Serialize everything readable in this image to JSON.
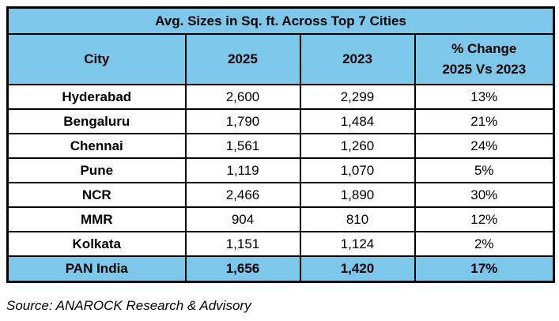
{
  "title": "Avg. Sizes in Sq. ft. Across Top 7 Cities",
  "source": "Source: ANAROCK Research & Advisory",
  "colors": {
    "header_bg": "#7CC7EA",
    "total_row_bg": "#7CC7EA",
    "border": "#000000",
    "text": "#000000",
    "page_bg": "#FFFFFF"
  },
  "table": {
    "header": {
      "city": "City",
      "y2025": "2025",
      "y2023": "2023",
      "change_line1": "% Change",
      "change_line2": "2025 Vs 2023"
    },
    "rows": [
      {
        "city": "Hyderabad",
        "v2025": "2,600",
        "v2023": "2,299",
        "change": "13%"
      },
      {
        "city": "Bengaluru",
        "v2025": "1,790",
        "v2023": "1,484",
        "change": "21%"
      },
      {
        "city": "Chennai",
        "v2025": "1,561",
        "v2023": "1,260",
        "change": "24%"
      },
      {
        "city": "Pune",
        "v2025": "1,119",
        "v2023": "1,070",
        "change": "5%"
      },
      {
        "city": "NCR",
        "v2025": "2,466",
        "v2023": "1,890",
        "change": "30%"
      },
      {
        "city": "MMR",
        "v2025": "904",
        "v2023": "810",
        "change": "12%"
      },
      {
        "city": "Kolkata",
        "v2025": "1,151",
        "v2023": "1,124",
        "change": "2%"
      },
      {
        "city": "PAN India",
        "v2025": "1,656",
        "v2023": "1,420",
        "change": "17%"
      }
    ]
  },
  "chart_data": {
    "type": "table",
    "title": "Avg. Sizes in Sq. ft. Across Top 7 Cities",
    "columns": [
      "City",
      "2025",
      "2023",
      "% Change 2025 Vs 2023"
    ],
    "rows": [
      [
        "Hyderabad",
        2600,
        2299,
        "13%"
      ],
      [
        "Bengaluru",
        1790,
        1484,
        "21%"
      ],
      [
        "Chennai",
        1561,
        1260,
        "24%"
      ],
      [
        "Pune",
        1119,
        1070,
        "5%"
      ],
      [
        "NCR",
        2466,
        1890,
        "30%"
      ],
      [
        "MMR",
        904,
        810,
        "12%"
      ],
      [
        "Kolkata",
        1151,
        1124,
        "2%"
      ],
      [
        "PAN India",
        1656,
        1420,
        "17%"
      ]
    ],
    "highlighted_row": "PAN India",
    "source": "Source: ANAROCK Research & Advisory"
  }
}
